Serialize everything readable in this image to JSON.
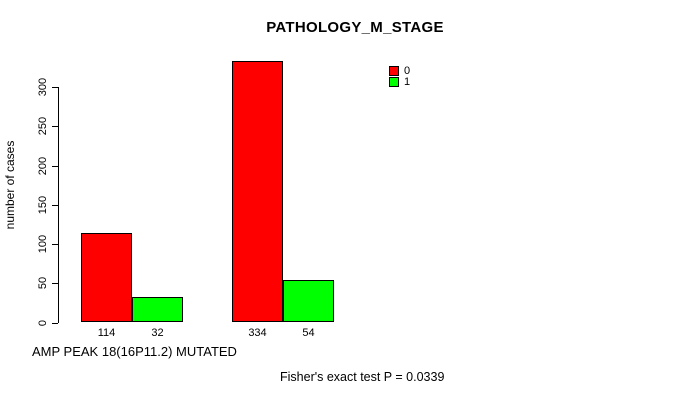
{
  "figure": {
    "background": "#FFFFFF"
  },
  "chart_data": {
    "type": "bar",
    "title": "PATHOLOGY_M_STAGE",
    "xlabel": "AMP PEAK 18(16P11.2) MUTATED",
    "ylabel": "number of cases",
    "ylim": [
      0,
      334
    ],
    "yticks": [
      0,
      50,
      100,
      150,
      200,
      250,
      300
    ],
    "grid": false,
    "group_count": 2,
    "series": [
      {
        "name": "0",
        "color": "#FF0000",
        "values": [
          114,
          334
        ]
      },
      {
        "name": "1",
        "color": "#00FF00",
        "values": [
          32,
          54
        ]
      }
    ],
    "bar_labels": [
      "114",
      "32",
      "334",
      "54"
    ],
    "legend": {
      "position": "top-right",
      "entries": [
        {
          "label": "0",
          "color": "#FF0000"
        },
        {
          "label": "1",
          "color": "#00FF00"
        }
      ]
    },
    "annotation": "Fisher's exact test P = 0.0339"
  }
}
